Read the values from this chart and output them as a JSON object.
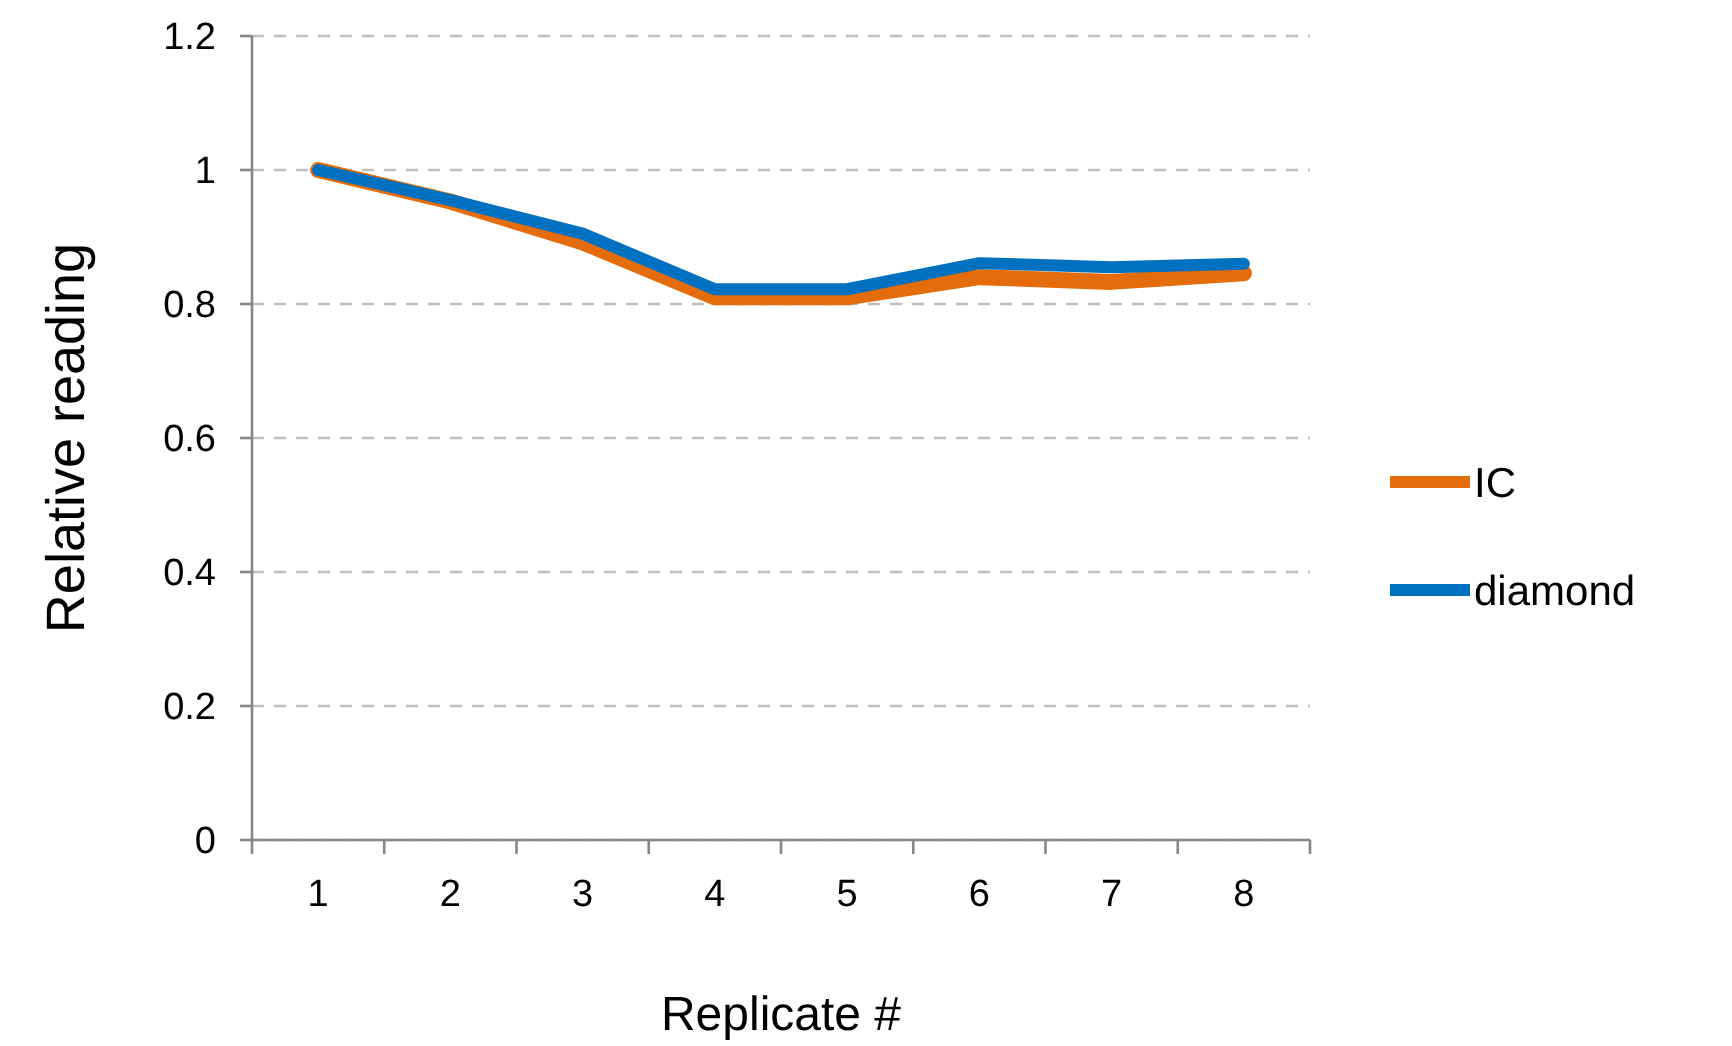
{
  "chart_data": {
    "type": "line",
    "xlabel": "Replicate #",
    "ylabel": "Relative reading",
    "categories": [
      "1",
      "2",
      "3",
      "4",
      "5",
      "6",
      "7",
      "8"
    ],
    "series": [
      {
        "name": "IC",
        "color": "#e46c0a",
        "values": [
          1.0,
          0.953,
          0.892,
          0.81,
          0.81,
          0.84,
          0.833,
          0.846
        ]
      },
      {
        "name": "diamond",
        "color": "#0070c0",
        "values": [
          1.0,
          0.955,
          0.905,
          0.822,
          0.822,
          0.861,
          0.855,
          0.86
        ]
      }
    ],
    "ylim": [
      0,
      1.2
    ],
    "yticks": [
      0,
      {
        "value": 0.2,
        "label": "0.2"
      },
      {
        "value": 0.4,
        "label": "0.4"
      },
      {
        "value": 0.6,
        "label": "0.6"
      },
      {
        "value": 0.8,
        "label": "0.8"
      },
      1,
      {
        "value": 1.2,
        "label": "1.2"
      }
    ],
    "grid": "y",
    "legend": "right",
    "marker": "none",
    "line_style": "solid"
  }
}
